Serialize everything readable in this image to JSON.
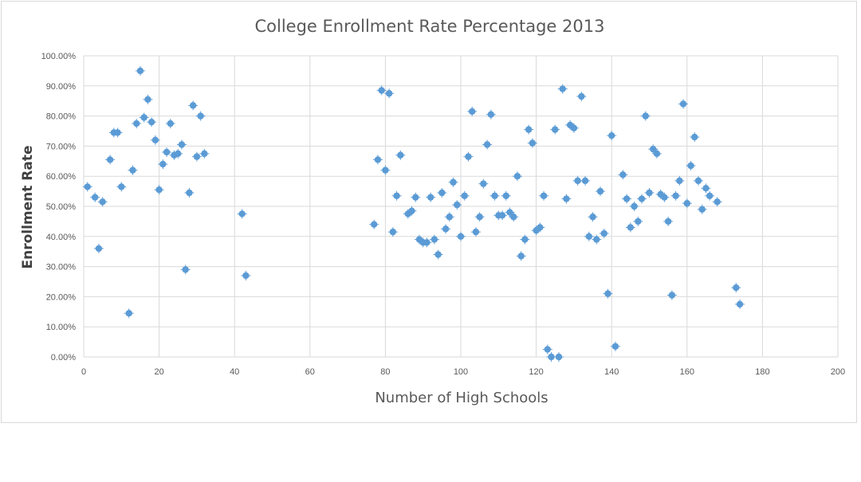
{
  "chart_data": {
    "type": "scatter",
    "title": "College Enrollment Rate Percentage 2013",
    "xlabel": "Number of High Schools",
    "ylabel": "Enrollment Rate",
    "xlim": [
      0,
      200
    ],
    "ylim": [
      0,
      1
    ],
    "x_ticks": [
      "0",
      "20",
      "40",
      "60",
      "80",
      "100",
      "120",
      "140",
      "160",
      "180",
      "200"
    ],
    "y_ticks": [
      "0.00%",
      "10.00%",
      "20.00%",
      "30.00%",
      "40.00%",
      "50.00%",
      "60.00%",
      "70.00%",
      "80.00%",
      "90.00%",
      "100.00%"
    ],
    "grid": true,
    "legend": "none",
    "marker_color": "#5b9bd5",
    "error_bars": true,
    "series": [
      {
        "x": [
          1,
          3,
          4,
          5,
          7,
          8,
          9,
          10,
          12,
          13,
          14,
          15,
          16,
          17,
          18,
          19,
          20,
          21,
          22,
          23,
          24,
          25,
          26,
          27,
          28,
          29,
          30,
          31,
          32,
          42,
          43,
          77,
          78,
          79,
          80,
          81,
          82,
          83,
          84,
          86,
          87,
          88,
          89,
          90,
          91,
          92,
          93,
          94,
          95,
          96,
          97,
          98,
          99,
          100,
          101,
          102,
          103,
          104,
          105,
          106,
          107,
          108,
          109,
          110,
          111,
          112,
          113,
          114,
          115,
          116,
          117,
          118,
          119,
          120,
          121,
          122,
          123,
          124,
          125,
          126,
          127,
          128,
          129,
          130,
          131,
          132,
          133,
          134,
          135,
          136,
          137,
          138,
          139,
          140,
          141,
          143,
          144,
          145,
          146,
          147,
          148,
          149,
          150,
          151,
          152,
          153,
          154,
          155,
          156,
          157,
          158,
          159,
          160,
          161,
          162,
          163,
          164,
          165,
          166,
          168,
          173,
          174
        ],
        "y": [
          0.565,
          0.53,
          0.36,
          0.515,
          0.655,
          0.745,
          0.745,
          0.565,
          0.145,
          0.62,
          0.775,
          0.95,
          0.795,
          0.855,
          0.78,
          0.72,
          0.555,
          0.64,
          0.68,
          0.775,
          0.67,
          0.675,
          0.705,
          0.29,
          0.545,
          0.835,
          0.665,
          0.8,
          0.675,
          0.475,
          0.27,
          0.44,
          0.655,
          0.885,
          0.62,
          0.875,
          0.415,
          0.535,
          0.67,
          0.475,
          0.485,
          0.53,
          0.39,
          0.38,
          0.38,
          0.53,
          0.39,
          0.34,
          0.545,
          0.425,
          0.465,
          0.58,
          0.505,
          0.4,
          0.535,
          0.665,
          0.815,
          0.415,
          0.465,
          0.575,
          0.705,
          0.805,
          0.535,
          0.47,
          0.47,
          0.535,
          0.48,
          0.465,
          0.6,
          0.335,
          0.39,
          0.755,
          0.71,
          0.42,
          0.43,
          0.535,
          0.025,
          0.0,
          0.755,
          0.0,
          0.89,
          0.525,
          0.77,
          0.76,
          0.585,
          0.865,
          0.585,
          0.4,
          0.465,
          0.39,
          0.55,
          0.41,
          0.21,
          0.735,
          0.035,
          0.605,
          0.525,
          0.43,
          0.5,
          0.45,
          0.525,
          0.8,
          0.545,
          0.69,
          0.675,
          0.54,
          0.53,
          0.45,
          0.205,
          0.535,
          0.585,
          0.84,
          0.51,
          0.635,
          0.73,
          0.585,
          0.49,
          0.56,
          0.535,
          0.515,
          0.23,
          0.175
        ]
      }
    ]
  }
}
